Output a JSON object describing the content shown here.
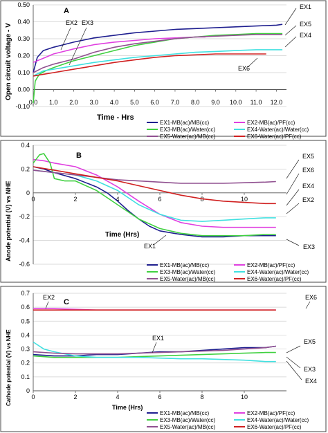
{
  "chart_data": [
    {
      "type": "line",
      "panel_label": "A",
      "xlabel": "Time - Hrs",
      "ylabel": "Open circuit voltage - V",
      "xlim": [
        0,
        12.5
      ],
      "ylim": [
        -0.1,
        0.5
      ],
      "x_ticks": [
        "0.0",
        "1.0",
        "2.0",
        "3.0",
        "4.0",
        "5.0",
        "6.0",
        "7.0",
        "8.0",
        "9.0",
        "10.0",
        "11.0",
        "12.0"
      ],
      "y_ticks": [
        "-0.10",
        "0.00",
        "0.10",
        "0.20",
        "0.30",
        "0.40",
        "0.50"
      ],
      "grid": "horizontal",
      "legend_position": "bottom",
      "series": [
        {
          "name": "EX1-MB(ac)/MB(cc)",
          "color": "#1f1f8f",
          "x": [
            0,
            0.2,
            0.5,
            1,
            1.5,
            2,
            3,
            4,
            5,
            6,
            7,
            8,
            9,
            10,
            11,
            12,
            12.3
          ],
          "y": [
            0.1,
            0.19,
            0.23,
            0.25,
            0.265,
            0.28,
            0.305,
            0.32,
            0.335,
            0.345,
            0.355,
            0.36,
            0.365,
            0.37,
            0.375,
            0.38,
            0.385
          ]
        },
        {
          "name": "EX2-MB(ac)/PF(cc)",
          "color": "#e040e0",
          "x": [
            0,
            0.2,
            0.5,
            1,
            1.5,
            2,
            3,
            4,
            5,
            6,
            7,
            8,
            8.5
          ],
          "y": [
            0.16,
            0.17,
            0.185,
            0.21,
            0.225,
            0.24,
            0.265,
            0.28,
            0.29,
            0.3,
            0.305,
            0.31,
            0.31
          ]
        },
        {
          "name": "EX3-MB(ac)/Water(cc)",
          "color": "#40d040",
          "x": [
            0,
            0.1,
            0.3,
            0.6,
            1,
            1.5,
            2,
            3,
            4,
            5,
            6,
            7,
            8,
            9,
            10,
            11,
            12,
            12.3
          ],
          "y": [
            -0.08,
            0.05,
            0.09,
            0.11,
            0.13,
            0.15,
            0.17,
            0.2,
            0.23,
            0.26,
            0.28,
            0.3,
            0.31,
            0.32,
            0.325,
            0.33,
            0.33,
            0.33
          ]
        },
        {
          "name": "EX4-Water(ac)/Water(cc)",
          "color": "#40e0e0",
          "x": [
            0,
            0.5,
            1,
            2,
            3,
            4,
            5,
            6,
            7,
            8,
            9,
            10,
            11,
            12,
            12.3
          ],
          "y": [
            0.08,
            0.11,
            0.12,
            0.14,
            0.16,
            0.175,
            0.19,
            0.2,
            0.21,
            0.22,
            0.225,
            0.23,
            0.235,
            0.235,
            0.235
          ]
        },
        {
          "name": "EX5-Water(ac)/MB(cc)",
          "color": "#905090",
          "x": [
            0,
            0.5,
            1,
            2,
            3,
            4,
            5,
            6,
            7,
            8,
            9,
            10,
            11,
            12,
            12.3
          ],
          "y": [
            0.1,
            0.13,
            0.15,
            0.18,
            0.22,
            0.25,
            0.27,
            0.285,
            0.3,
            0.31,
            0.315,
            0.32,
            0.325,
            0.325,
            0.325
          ]
        },
        {
          "name": "EX6-Water(ac)/PF(cc)",
          "color": "#d02020",
          "x": [
            0,
            0.5,
            1,
            2,
            3,
            4,
            5,
            6,
            7,
            8,
            9,
            10,
            11,
            11.5
          ],
          "y": [
            0.08,
            0.09,
            0.1,
            0.12,
            0.14,
            0.16,
            0.175,
            0.19,
            0.2,
            0.205,
            0.21,
            0.21,
            0.21,
            0.21
          ]
        }
      ],
      "annotations": [
        "EX1",
        "EX2",
        "EX3",
        "EX4",
        "EX5",
        "EX6"
      ]
    },
    {
      "type": "line",
      "panel_label": "B",
      "xlabel": "Time (Hrs)",
      "ylabel": "Anode potential (V) vs NHE",
      "xlim": [
        0,
        12
      ],
      "ylim": [
        -0.6,
        0.4
      ],
      "x_ticks": [
        "0",
        "2",
        "4",
        "6",
        "8",
        "10"
      ],
      "y_ticks": [
        "-0.6",
        "-0.4",
        "-0.2",
        "0",
        "0.2",
        "0.4"
      ],
      "grid": "horizontal",
      "legend_position": "bottom",
      "series": [
        {
          "name": "EX1-MB(ac)/MB(cc)",
          "color": "#1f1f8f",
          "x": [
            0,
            0.5,
            1,
            2,
            3,
            3.5,
            4,
            4.5,
            5,
            5.5,
            6,
            7,
            8,
            9,
            10,
            11,
            11.5
          ],
          "y": [
            0.22,
            0.2,
            0.17,
            0.12,
            0.05,
            0.0,
            -0.07,
            -0.15,
            -0.22,
            -0.28,
            -0.32,
            -0.35,
            -0.37,
            -0.37,
            -0.36,
            -0.36,
            -0.36
          ]
        },
        {
          "name": "EX2-MB(ac)/PF(cc)",
          "color": "#e040e0",
          "x": [
            0,
            0.5,
            1,
            2,
            3,
            4,
            5,
            6,
            7,
            8,
            9,
            10,
            11,
            11.5
          ],
          "y": [
            0.28,
            0.27,
            0.25,
            0.22,
            0.15,
            0.05,
            -0.07,
            -0.18,
            -0.25,
            -0.28,
            -0.29,
            -0.29,
            -0.29,
            -0.29
          ]
        },
        {
          "name": "EX3-MB(ac)/Water(cc)",
          "color": "#40d040",
          "x": [
            0,
            0.3,
            0.5,
            0.8,
            1,
            1.5,
            2,
            3,
            4,
            5,
            6,
            7,
            8,
            9,
            10,
            11,
            11.5
          ],
          "y": [
            0.25,
            0.32,
            0.33,
            0.25,
            0.12,
            0.1,
            0.1,
            0.02,
            -0.1,
            -0.22,
            -0.3,
            -0.34,
            -0.36,
            -0.36,
            -0.36,
            -0.35,
            -0.35
          ]
        },
        {
          "name": "EX4-Water(ac)/Water(cc)",
          "color": "#40e0e0",
          "x": [
            0,
            1,
            2,
            3,
            4,
            5,
            6,
            7,
            8,
            9,
            10,
            11,
            11.5
          ],
          "y": [
            0.19,
            0.17,
            0.15,
            0.1,
            0.02,
            -0.1,
            -0.18,
            -0.23,
            -0.24,
            -0.23,
            -0.22,
            -0.21,
            -0.21
          ]
        },
        {
          "name": "EX5-Water(ac)/MB(cc)",
          "color": "#905090",
          "x": [
            0,
            1,
            2,
            3,
            4,
            5,
            6,
            7,
            8,
            9,
            10,
            11,
            11.5
          ],
          "y": [
            0.19,
            0.17,
            0.15,
            0.13,
            0.11,
            0.1,
            0.09,
            0.08,
            0.08,
            0.08,
            0.085,
            0.09,
            0.095
          ]
        },
        {
          "name": "EX6-Water(ac)/PF(cc)",
          "color": "#d02020",
          "x": [
            0,
            1,
            2,
            3,
            4,
            5,
            6,
            7,
            8,
            9,
            10,
            11,
            11.5
          ],
          "y": [
            0.22,
            0.19,
            0.16,
            0.13,
            0.1,
            0.06,
            0.02,
            -0.02,
            -0.05,
            -0.07,
            -0.08,
            -0.09,
            -0.09
          ]
        }
      ],
      "annotations": [
        "EX1",
        "EX2",
        "EX3",
        "EX4",
        "EX5",
        "EX6"
      ]
    },
    {
      "type": "line",
      "panel_label": "C",
      "xlabel": "Time (Hrs)",
      "ylabel": "Cathode potential (V) vs NHE",
      "xlim": [
        0,
        12
      ],
      "ylim": [
        0,
        0.7
      ],
      "x_ticks": [
        "0",
        "2",
        "4",
        "6",
        "8",
        "10"
      ],
      "y_ticks": [
        "0",
        "0.1",
        "0.2",
        "0.3",
        "0.4",
        "0.5",
        "0.6",
        "0.7"
      ],
      "grid": "horizontal",
      "legend_position": "bottom",
      "series": [
        {
          "name": "EX1-MB(ac)/MB(cc)",
          "color": "#1f1f8f",
          "x": [
            0,
            1,
            2,
            3,
            4,
            5,
            6,
            7,
            8,
            9,
            10,
            11,
            11.5
          ],
          "y": [
            0.26,
            0.25,
            0.25,
            0.26,
            0.26,
            0.27,
            0.28,
            0.28,
            0.29,
            0.3,
            0.31,
            0.31,
            0.32
          ]
        },
        {
          "name": "EX2-MB(ac)/PF(cc)",
          "color": "#e040e0",
          "x": [
            0,
            1,
            2,
            3,
            4,
            5,
            6,
            7,
            8,
            9,
            10,
            11,
            11.5
          ],
          "y": [
            0.59,
            0.59,
            0.585,
            0.58,
            0.58,
            0.58,
            0.58,
            0.58,
            0.58,
            0.58,
            0.58,
            0.58,
            0.58
          ]
        },
        {
          "name": "EX3-MB(ac)/Water(cc)",
          "color": "#40d040",
          "x": [
            0,
            1,
            2,
            3,
            4,
            5,
            6,
            7,
            8,
            9,
            10,
            11,
            11.5
          ],
          "y": [
            0.25,
            0.24,
            0.24,
            0.24,
            0.24,
            0.245,
            0.25,
            0.255,
            0.26,
            0.265,
            0.27,
            0.275,
            0.275
          ]
        },
        {
          "name": "EX4-Water(ac)/Water(cc)",
          "color": "#40e0e0",
          "x": [
            0,
            0.2,
            0.5,
            1,
            2,
            3,
            4,
            5,
            6,
            7,
            8,
            9,
            10,
            11,
            11.5
          ],
          "y": [
            0.35,
            0.33,
            0.3,
            0.28,
            0.25,
            0.24,
            0.24,
            0.24,
            0.235,
            0.23,
            0.23,
            0.225,
            0.22,
            0.21,
            0.21
          ]
        },
        {
          "name": "EX5-Water(ac)/MB(cc)",
          "color": "#905090",
          "x": [
            0,
            1,
            2,
            3,
            4,
            5,
            6,
            7,
            8,
            9,
            10,
            11,
            11.5
          ],
          "y": [
            0.28,
            0.27,
            0.265,
            0.265,
            0.265,
            0.27,
            0.275,
            0.28,
            0.285,
            0.29,
            0.3,
            0.31,
            0.32
          ]
        },
        {
          "name": "EX6-Water(ac)/PF(cc)",
          "color": "#d02020",
          "x": [
            0,
            1,
            2,
            3,
            4,
            5,
            6,
            7,
            8,
            9,
            10,
            11,
            11.5
          ],
          "y": [
            0.58,
            0.58,
            0.58,
            0.58,
            0.58,
            0.58,
            0.58,
            0.58,
            0.58,
            0.58,
            0.58,
            0.58,
            0.58
          ]
        }
      ],
      "annotations": [
        "EX1",
        "EX2",
        "EX3",
        "EX4",
        "EX5",
        "EX6"
      ]
    }
  ]
}
